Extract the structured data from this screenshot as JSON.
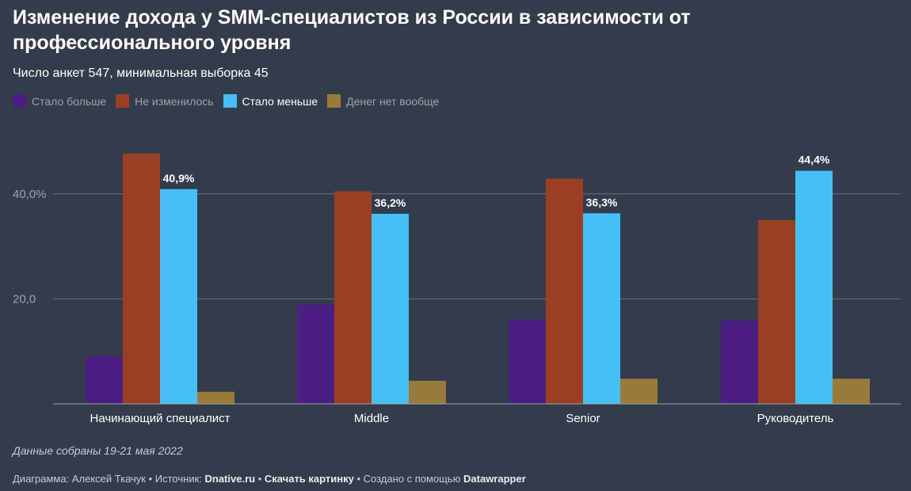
{
  "title": "Изменение дохода у SMM-специалистов из России в зависимости от профессионального уровня",
  "subtitle": "Число анкет 547, минимальная выборка 45",
  "note": "Данные собраны 19-21 мая 2022",
  "footer": {
    "author_prefix": "Диаграмма: Алексей Ткачук • Источник: ",
    "source": "Dnative.ru",
    "sep1": " • ",
    "download": "Скачать картинку",
    "made_with_prefix": " • Создано с помощью ",
    "tool": "Datawrapper"
  },
  "colors": {
    "background": "#333c4a",
    "more": "#4b1f82",
    "unchanged": "#9a3f24",
    "less": "#47bff5",
    "no_money": "#9a7a3a",
    "grid": "#6b7380",
    "tick": "#9aa3ad"
  },
  "chart_data": {
    "type": "bar",
    "categories": [
      "Начинающий специалист",
      "Middle",
      "Senior",
      "Руководитель"
    ],
    "series": [
      {
        "name": "Стало больше",
        "color": "#4b1f82",
        "values": [
          9.1,
          18.9,
          16.1,
          15.9
        ]
      },
      {
        "name": "Не изменилось",
        "color": "#9a3f24",
        "values": [
          47.7,
          40.5,
          42.9,
          35.0
        ]
      },
      {
        "name": "Стало меньше",
        "color": "#47bff5",
        "values": [
          40.9,
          36.2,
          36.3,
          44.4
        ],
        "labels": [
          "40,9%",
          "36,2%",
          "36,3%",
          "44,4%"
        ]
      },
      {
        "name": "Денег нет вообще",
        "color": "#9a7a3a",
        "values": [
          2.3,
          4.4,
          4.8,
          4.8
        ]
      }
    ],
    "yticks": [
      {
        "value": 20,
        "label": "20,0"
      },
      {
        "value": 40,
        "label": "40,0%"
      }
    ],
    "ylim": [
      0,
      50
    ],
    "grid": true,
    "legend_position": "top-left",
    "xlabel": "",
    "ylabel": ""
  }
}
